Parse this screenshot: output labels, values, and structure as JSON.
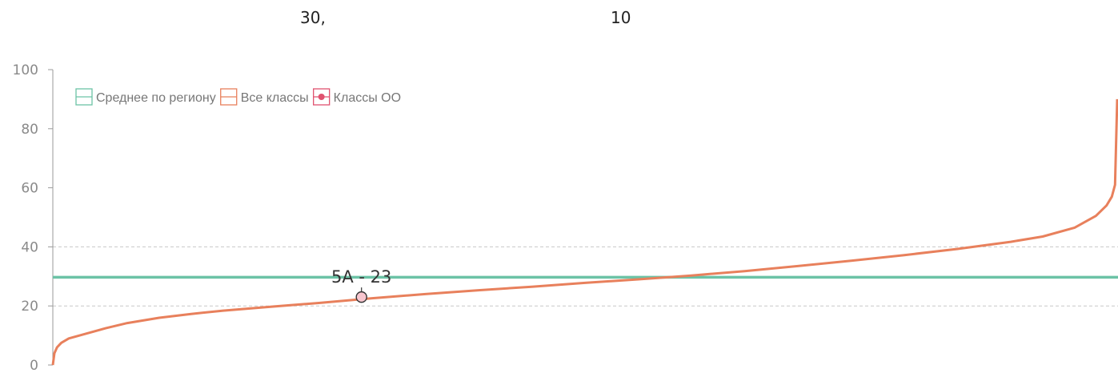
{
  "header": {
    "left_text": "30,",
    "right_text": "10"
  },
  "colors": {
    "average": "#6cc3a6",
    "all_classes": "#e8805c",
    "school_classes": "#e0526f"
  },
  "chart_data": {
    "type": "line",
    "ylim": [
      0,
      100
    ],
    "yticks": [
      0,
      20,
      40,
      60,
      80,
      100
    ],
    "grid": "dashed at 20 and 40",
    "legend_position": "top-left",
    "legend": [
      {
        "label": "Среднее по региону",
        "icon": "hollow-rect",
        "color": "#6cc3a6"
      },
      {
        "label": "Все классы",
        "icon": "hollow-rect",
        "color": "#e8805c"
      },
      {
        "label": "Классы ОО",
        "icon": "rect-with-dot",
        "color": "#e0526f"
      }
    ],
    "series": [
      {
        "name": "Среднее по региону",
        "type": "constant",
        "value": 29.7
      },
      {
        "name": "Все классы",
        "type": "sorted-curve",
        "x_range": [
          0,
          1
        ],
        "points": [
          [
            0.0,
            0
          ],
          [
            0.0015,
            4
          ],
          [
            0.004,
            6
          ],
          [
            0.008,
            7.5
          ],
          [
            0.015,
            9
          ],
          [
            0.03,
            10.5
          ],
          [
            0.05,
            12.5
          ],
          [
            0.07,
            14.2
          ],
          [
            0.1,
            16
          ],
          [
            0.13,
            17.3
          ],
          [
            0.16,
            18.4
          ],
          [
            0.2,
            19.6
          ],
          [
            0.25,
            21
          ],
          [
            0.3,
            22.6
          ],
          [
            0.35,
            24
          ],
          [
            0.4,
            25.3
          ],
          [
            0.45,
            26.5
          ],
          [
            0.5,
            27.8
          ],
          [
            0.55,
            29
          ],
          [
            0.6,
            30.3
          ],
          [
            0.65,
            31.8
          ],
          [
            0.7,
            33.5
          ],
          [
            0.75,
            35.3
          ],
          [
            0.8,
            37.2
          ],
          [
            0.85,
            39.3
          ],
          [
            0.9,
            41.7
          ],
          [
            0.93,
            43.5
          ],
          [
            0.96,
            46.5
          ],
          [
            0.98,
            50.5
          ],
          [
            0.99,
            54
          ],
          [
            0.995,
            57
          ],
          [
            0.998,
            61
          ],
          [
            1.0,
            90
          ]
        ]
      },
      {
        "name": "Классы ОО",
        "type": "points",
        "points": [
          {
            "x": 0.29,
            "y": 23,
            "label": "5А - 23"
          }
        ]
      }
    ]
  }
}
